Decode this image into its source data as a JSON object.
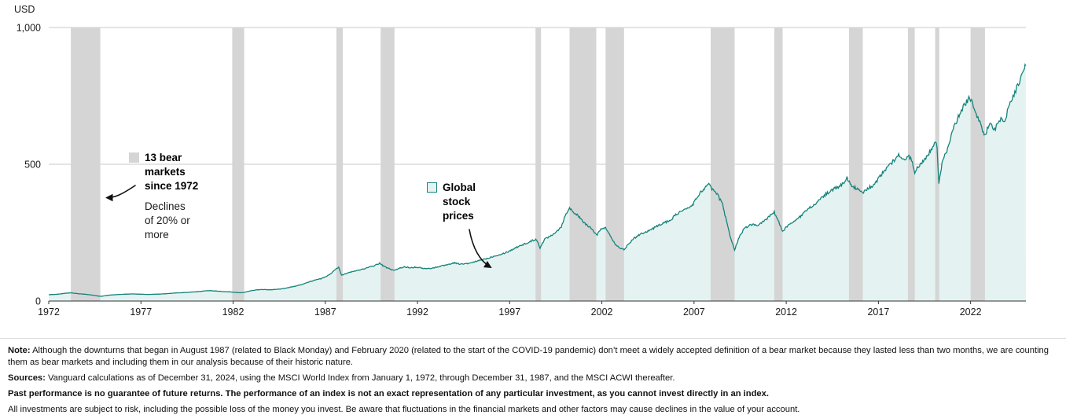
{
  "chart_data": {
    "type": "area",
    "title": "",
    "y_axis_title": "USD",
    "x_range": [
      1972,
      2025
    ],
    "y_range": [
      0,
      1000
    ],
    "x_ticks": [
      1972,
      1977,
      1982,
      1987,
      1992,
      1997,
      2002,
      2007,
      2012,
      2017,
      2022
    ],
    "y_ticks": [
      {
        "value": 1000,
        "label": "1,000"
      },
      {
        "value": 500,
        "label": "500"
      },
      {
        "value": 0,
        "label": "0"
      }
    ],
    "grid": "horizontal gridlines at 500 and 1,000; legend rendered as in-chart annotations",
    "annotations": {
      "bear_title": "13 bear markets since 1972",
      "bear_subtitle": "Declines of 20% or more",
      "line_label": "Global stock prices"
    },
    "colors": {
      "line": "#15837b",
      "area": "#e4f3f1",
      "band": "#d5d5d5",
      "grid": "#c9c9c9",
      "axis": "#333333",
      "text": "#1a1a1a"
    },
    "bear_markets": [
      [
        1973.2,
        1974.8
      ],
      [
        1981.95,
        1982.6
      ],
      [
        1987.6,
        1987.95
      ],
      [
        1990.0,
        1990.75
      ],
      [
        1998.4,
        1998.7
      ],
      [
        2000.25,
        2001.7
      ],
      [
        2002.2,
        2003.2
      ],
      [
        2007.9,
        2009.2
      ],
      [
        2011.35,
        2011.8
      ],
      [
        2015.4,
        2016.15
      ],
      [
        2018.6,
        2018.97
      ],
      [
        2020.08,
        2020.3
      ],
      [
        2022.0,
        2022.78
      ]
    ],
    "series": [
      {
        "name": "Global stock prices",
        "points": [
          [
            1972.0,
            23
          ],
          [
            1972.25,
            24
          ],
          [
            1972.5,
            25
          ],
          [
            1972.75,
            27
          ],
          [
            1973.0,
            29
          ],
          [
            1973.2,
            30
          ],
          [
            1973.45,
            28
          ],
          [
            1973.7,
            26
          ],
          [
            1973.95,
            25
          ],
          [
            1974.2,
            23
          ],
          [
            1974.45,
            21
          ],
          [
            1974.7,
            18
          ],
          [
            1974.85,
            17
          ],
          [
            1975.1,
            20
          ],
          [
            1975.35,
            22
          ],
          [
            1975.6,
            23
          ],
          [
            1975.85,
            24
          ],
          [
            1976.2,
            25
          ],
          [
            1976.6,
            26
          ],
          [
            1977.0,
            25
          ],
          [
            1977.4,
            24
          ],
          [
            1977.8,
            25
          ],
          [
            1978.2,
            26
          ],
          [
            1978.6,
            28
          ],
          [
            1979.0,
            30
          ],
          [
            1979.4,
            31
          ],
          [
            1979.8,
            33
          ],
          [
            1980.2,
            35
          ],
          [
            1980.6,
            38
          ],
          [
            1981.0,
            37
          ],
          [
            1981.4,
            35
          ],
          [
            1981.9,
            33
          ],
          [
            1982.2,
            31
          ],
          [
            1982.5,
            30
          ],
          [
            1982.75,
            34
          ],
          [
            1983.0,
            38
          ],
          [
            1983.3,
            41
          ],
          [
            1983.6,
            42
          ],
          [
            1984.0,
            41
          ],
          [
            1984.4,
            43
          ],
          [
            1984.8,
            46
          ],
          [
            1985.2,
            52
          ],
          [
            1985.6,
            58
          ],
          [
            1986.0,
            67
          ],
          [
            1986.4,
            76
          ],
          [
            1986.8,
            82
          ],
          [
            1987.1,
            92
          ],
          [
            1987.4,
            106
          ],
          [
            1987.6,
            118
          ],
          [
            1987.72,
            124
          ],
          [
            1987.88,
            95
          ],
          [
            1988.1,
            100
          ],
          [
            1988.4,
            106
          ],
          [
            1988.7,
            111
          ],
          [
            1989.0,
            116
          ],
          [
            1989.3,
            122
          ],
          [
            1989.6,
            128
          ],
          [
            1989.95,
            138
          ],
          [
            1990.2,
            126
          ],
          [
            1990.5,
            117
          ],
          [
            1990.75,
            112
          ],
          [
            1991.0,
            119
          ],
          [
            1991.3,
            125
          ],
          [
            1991.6,
            122
          ],
          [
            1991.9,
            124
          ],
          [
            1992.2,
            121
          ],
          [
            1992.5,
            118
          ],
          [
            1992.8,
            120
          ],
          [
            1993.1,
            125
          ],
          [
            1993.4,
            130
          ],
          [
            1993.7,
            134
          ],
          [
            1994.0,
            140
          ],
          [
            1994.3,
            135
          ],
          [
            1994.6,
            136
          ],
          [
            1994.9,
            139
          ],
          [
            1995.2,
            145
          ],
          [
            1995.5,
            151
          ],
          [
            1995.8,
            156
          ],
          [
            1996.1,
            163
          ],
          [
            1996.4,
            169
          ],
          [
            1996.7,
            175
          ],
          [
            1997.0,
            183
          ],
          [
            1997.3,
            194
          ],
          [
            1997.6,
            204
          ],
          [
            1997.9,
            210
          ],
          [
            1998.2,
            220
          ],
          [
            1998.45,
            226
          ],
          [
            1998.65,
            195
          ],
          [
            1998.9,
            226
          ],
          [
            1999.2,
            238
          ],
          [
            1999.5,
            252
          ],
          [
            1999.8,
            272
          ],
          [
            2000.05,
            320
          ],
          [
            2000.25,
            339
          ],
          [
            2000.5,
            324
          ],
          [
            2000.75,
            308
          ],
          [
            2001.0,
            288
          ],
          [
            2001.3,
            272
          ],
          [
            2001.55,
            255
          ],
          [
            2001.75,
            244
          ],
          [
            2001.95,
            262
          ],
          [
            2002.2,
            268
          ],
          [
            2002.45,
            242
          ],
          [
            2002.7,
            210
          ],
          [
            2002.95,
            196
          ],
          [
            2003.2,
            187
          ],
          [
            2003.45,
            210
          ],
          [
            2003.7,
            226
          ],
          [
            2003.95,
            240
          ],
          [
            2004.25,
            250
          ],
          [
            2004.55,
            257
          ],
          [
            2004.85,
            268
          ],
          [
            2005.15,
            280
          ],
          [
            2005.45,
            288
          ],
          [
            2005.75,
            297
          ],
          [
            2006.05,
            318
          ],
          [
            2006.35,
            330
          ],
          [
            2006.65,
            337
          ],
          [
            2006.95,
            355
          ],
          [
            2007.25,
            388
          ],
          [
            2007.55,
            412
          ],
          [
            2007.8,
            425
          ],
          [
            2008.05,
            405
          ],
          [
            2008.3,
            386
          ],
          [
            2008.55,
            352
          ],
          [
            2008.8,
            280
          ],
          [
            2009.0,
            228
          ],
          [
            2009.2,
            187
          ],
          [
            2009.45,
            235
          ],
          [
            2009.7,
            262
          ],
          [
            2009.95,
            275
          ],
          [
            2010.2,
            282
          ],
          [
            2010.45,
            272
          ],
          [
            2010.7,
            288
          ],
          [
            2010.95,
            300
          ],
          [
            2011.15,
            315
          ],
          [
            2011.35,
            325
          ],
          [
            2011.6,
            288
          ],
          [
            2011.8,
            253
          ],
          [
            2012.0,
            270
          ],
          [
            2012.3,
            288
          ],
          [
            2012.6,
            298
          ],
          [
            2012.9,
            318
          ],
          [
            2013.2,
            338
          ],
          [
            2013.5,
            352
          ],
          [
            2013.8,
            368
          ],
          [
            2014.1,
            388
          ],
          [
            2014.4,
            402
          ],
          [
            2014.7,
            413
          ],
          [
            2015.0,
            424
          ],
          [
            2015.3,
            450
          ],
          [
            2015.6,
            420
          ],
          [
            2015.9,
            406
          ],
          [
            2016.15,
            395
          ],
          [
            2016.45,
            413
          ],
          [
            2016.75,
            424
          ],
          [
            2017.05,
            452
          ],
          [
            2017.35,
            478
          ],
          [
            2017.65,
            500
          ],
          [
            2017.95,
            522
          ],
          [
            2018.1,
            540
          ],
          [
            2018.35,
            514
          ],
          [
            2018.6,
            530
          ],
          [
            2018.8,
            516
          ],
          [
            2018.97,
            470
          ],
          [
            2019.15,
            492
          ],
          [
            2019.4,
            512
          ],
          [
            2019.65,
            532
          ],
          [
            2019.9,
            558
          ],
          [
            2020.08,
            588
          ],
          [
            2020.18,
            555
          ],
          [
            2020.28,
            430
          ],
          [
            2020.45,
            505
          ],
          [
            2020.65,
            540
          ],
          [
            2020.85,
            575
          ],
          [
            2021.05,
            628
          ],
          [
            2021.25,
            658
          ],
          [
            2021.5,
            698
          ],
          [
            2021.7,
            718
          ],
          [
            2021.95,
            748
          ],
          [
            2022.1,
            722
          ],
          [
            2022.3,
            688
          ],
          [
            2022.5,
            655
          ],
          [
            2022.65,
            622
          ],
          [
            2022.78,
            605
          ],
          [
            2022.95,
            635
          ],
          [
            2023.1,
            645
          ],
          [
            2023.3,
            624
          ],
          [
            2023.5,
            652
          ],
          [
            2023.7,
            668
          ],
          [
            2023.85,
            648
          ],
          [
            2024.0,
            698
          ],
          [
            2024.2,
            728
          ],
          [
            2024.4,
            762
          ],
          [
            2024.55,
            788
          ],
          [
            2024.7,
            812
          ],
          [
            2024.82,
            838
          ],
          [
            2024.92,
            852
          ],
          [
            2024.99,
            860
          ]
        ]
      }
    ]
  },
  "notes": {
    "note_label": "Note:",
    "note_text": " Although the downturns that began in August 1987 (related to Black Monday) and February 2020 (related to the start of the COVID-19 pandemic) don’t meet a widely accepted definition of a bear market because they lasted less than two months, we are counting them as bear markets and including them in our analysis because of their historic nature.",
    "sources_label": "Sources:",
    "sources_text": " Vanguard calculations as of December 31, 2024, using the MSCI World Index from January 1, 1972, through December 31, 1987, and the MSCI ACWI thereafter.",
    "past_performance": "Past performance is no guarantee of future returns. The performance of an index is not an exact representation of any particular investment, as you cannot invest directly in an index.",
    "risk": "All investments are subject to risk, including the possible loss of the money you invest. Be aware that fluctuations in the financial markets and other factors may cause declines in the value of your account."
  }
}
